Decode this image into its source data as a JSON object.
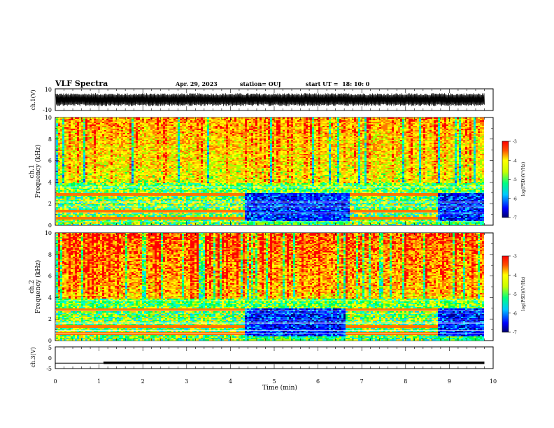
{
  "header": {
    "title": "VLF Spectra",
    "date": "Apr. 29, 2023",
    "station": "station= OUJ",
    "start": "start UT =  18: 10: 0"
  },
  "chart_data": [
    {
      "type": "line",
      "name": "ch1-waveform",
      "ylabel": "ch.1(V)",
      "ylim": [
        -10,
        10
      ],
      "yticks": [
        "10",
        "-10"
      ],
      "x": [
        0,
        1,
        2,
        3,
        4,
        5,
        6,
        7,
        8,
        9,
        9.8
      ],
      "y_envelope_upper": [
        4,
        4.5,
        4,
        4.5,
        4,
        5,
        4.5,
        4,
        4.5,
        4,
        4
      ],
      "y_envelope_lower": [
        -4,
        -4.5,
        -4,
        -4.5,
        -4,
        -4.5,
        -4.5,
        -4,
        -4.5,
        -4,
        -4
      ],
      "xlim": [
        0,
        10
      ]
    },
    {
      "type": "heatmap",
      "name": "ch1-spectrogram",
      "ylabel": "Frequency (kHz)",
      "channel_label": "ch.1",
      "ylim": [
        0,
        10
      ],
      "yticks": [
        "0",
        "2",
        "4",
        "6",
        "8",
        "10"
      ],
      "xlim": [
        0,
        10
      ],
      "colorbar": {
        "label": "log(PSD)(V²/Hz)",
        "range": [
          -7,
          -3
        ],
        "ticks": [
          "-3",
          "-4",
          "-5",
          "-6",
          "-7"
        ]
      },
      "quiet_intervals_min": [
        [
          4.3,
          6.7
        ],
        [
          8.7,
          9.8
        ]
      ],
      "active_intervals_min": [
        [
          0,
          4.3
        ],
        [
          6.7,
          8.7
        ]
      ]
    },
    {
      "type": "heatmap",
      "name": "ch2-spectrogram",
      "ylabel": "Frequency (kHz)",
      "channel_label": "ch.2",
      "ylim": [
        0,
        10
      ],
      "yticks": [
        "0",
        "2",
        "4",
        "6",
        "8",
        "10"
      ],
      "xlim": [
        0,
        10
      ],
      "colorbar": {
        "label": "log(PSD)(V²/Hz)",
        "range": [
          -7,
          -3
        ],
        "ticks": [
          "-3",
          "-4",
          "-5",
          "-6",
          "-7"
        ]
      },
      "quiet_intervals_min": [
        [
          4.3,
          6.6
        ],
        [
          8.7,
          9.8
        ]
      ],
      "active_intervals_min": [
        [
          0,
          4.3
        ],
        [
          6.6,
          8.7
        ]
      ]
    },
    {
      "type": "line",
      "name": "ch3-level",
      "ylabel": "ch.3(V)",
      "ylim": [
        -5,
        5
      ],
      "yticks": [
        "5",
        "0",
        "-5"
      ],
      "x": [
        0,
        1.1,
        1.1,
        9.8
      ],
      "y": [
        -2.5,
        -2.5,
        -2.5,
        -2.5
      ],
      "thick_from": 1.1,
      "xlim": [
        0,
        10
      ],
      "xlabel": "Time (min)",
      "xticks": [
        "0",
        "1",
        "2",
        "3",
        "4",
        "5",
        "6",
        "7",
        "8",
        "9",
        "10"
      ]
    }
  ],
  "colors": {
    "spectro_low": "#00008c",
    "spectro_high": "#ff0000",
    "axis": "#000000"
  }
}
